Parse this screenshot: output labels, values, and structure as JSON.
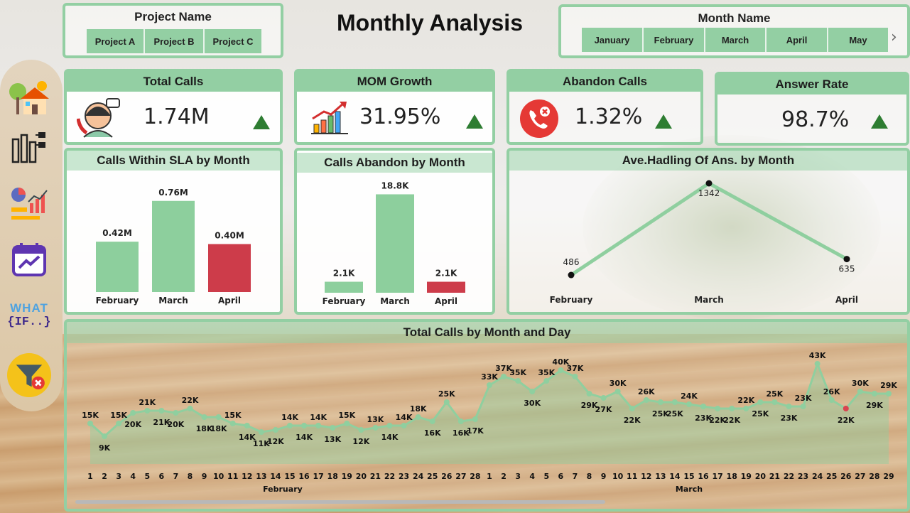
{
  "page": {
    "title": "Monthly Analysis"
  },
  "project_slicer": {
    "title": "Project Name",
    "options": [
      "Project A",
      "Project B",
      "Project C"
    ]
  },
  "month_slicer": {
    "title": "Month Name",
    "options": [
      "January",
      "February",
      "March",
      "April",
      "May"
    ],
    "next_glyph": "›"
  },
  "kpis": {
    "total_calls": {
      "title": "Total Calls",
      "value": "1.74M"
    },
    "mom_growth": {
      "title": "MOM Growth",
      "value": "31.95%"
    },
    "abandon_calls": {
      "title": "Abandon Calls",
      "value": "1.32%"
    },
    "answer_rate": {
      "title": "Answer Rate",
      "value": "98.7%"
    }
  },
  "colors": {
    "accent": "#93cfa3",
    "bar_green": "#8dcf9d",
    "bar_red": "#cd3c4a",
    "trend_up": "#2e7d32",
    "line": "#8fcf9f"
  },
  "sidebar": {
    "icons": [
      "home-icon",
      "hierarchy-icon",
      "analytics-icon",
      "calendar-icon",
      "what-if-icon",
      "clear-filter-icon"
    ],
    "what_if_text": "WHAT",
    "what_if_sub": "{IF..}"
  },
  "chart_data": [
    {
      "id": "sla",
      "type": "bar",
      "title": "Calls Within SLA by Month",
      "categories": [
        "February",
        "March",
        "April"
      ],
      "values": [
        0.42,
        0.76,
        0.4
      ],
      "labels": [
        "0.42M",
        "0.76M",
        "0.40M"
      ],
      "highlight_index": 2,
      "ylim": [
        0,
        0.8
      ]
    },
    {
      "id": "abandon",
      "type": "bar",
      "title": "Calls Abandon by Month",
      "categories": [
        "February",
        "March",
        "April"
      ],
      "values": [
        2.1,
        18.8,
        2.1
      ],
      "labels": [
        "2.1K",
        "18.8K",
        "2.1K"
      ],
      "highlight_index": 2,
      "ylim": [
        0,
        19
      ]
    },
    {
      "id": "handling",
      "type": "line",
      "title": "Ave.Hadling Of Ans. by Month",
      "categories": [
        "February",
        "March",
        "April"
      ],
      "values": [
        486,
        1342,
        635
      ],
      "labels": [
        "486",
        "1342",
        "635"
      ],
      "ylim": [
        420,
        1342
      ]
    },
    {
      "id": "daily",
      "type": "area",
      "title": "Total Calls by Month and Day",
      "days": [
        1,
        2,
        3,
        4,
        5,
        6,
        7,
        8,
        9,
        10,
        11,
        12,
        13,
        14,
        15,
        16,
        17,
        18,
        19,
        20,
        21,
        22,
        23,
        24,
        25,
        26,
        27,
        28,
        1,
        2,
        3,
        4,
        5,
        6,
        7,
        8,
        9,
        10,
        11,
        12,
        13,
        14,
        15,
        16,
        17,
        18,
        19,
        20,
        21,
        22,
        23,
        24,
        25,
        26,
        27,
        28,
        29
      ],
      "months": [
        {
          "label": "February",
          "start": 0,
          "end": 27
        },
        {
          "label": "March",
          "start": 28,
          "end": 56
        }
      ],
      "values": [
        15,
        9,
        15,
        20,
        21,
        21,
        20,
        22,
        18,
        18,
        15,
        14,
        11,
        12,
        14,
        14,
        14,
        13,
        15,
        12,
        13,
        14,
        14,
        18,
        16,
        25,
        16,
        17,
        33,
        37,
        35,
        30,
        35,
        40,
        37,
        29,
        27,
        30,
        22,
        26,
        25,
        25,
        24,
        23,
        22,
        22,
        22,
        25,
        25,
        23,
        23,
        43,
        26,
        22,
        30,
        29,
        29
      ],
      "labels": [
        "15K",
        "9K",
        "15K",
        "20K",
        "21K",
        "21K",
        "20K",
        "22K",
        "18K",
        "18K",
        "15K",
        "14K",
        "11K",
        "12K",
        "14K",
        "14K",
        "14K",
        "13K",
        "15K",
        "12K",
        "13K",
        "14K",
        "14K",
        "18K",
        "16K",
        "25K",
        "16K",
        "17K",
        "33K",
        "37K",
        "35K",
        "30K",
        "35K",
        "40K",
        "37K",
        "29K",
        "27K",
        "30K",
        "22K",
        "26K",
        "25K",
        "25K",
        "24K",
        "23K",
        "22K",
        "22K",
        "22K",
        "25K",
        "25K",
        "23K",
        "23K",
        "43K",
        "26K",
        "22K",
        "30K",
        "29K",
        "29K"
      ],
      "highlight_index": 53,
      "ylim": [
        5,
        45
      ]
    }
  ]
}
